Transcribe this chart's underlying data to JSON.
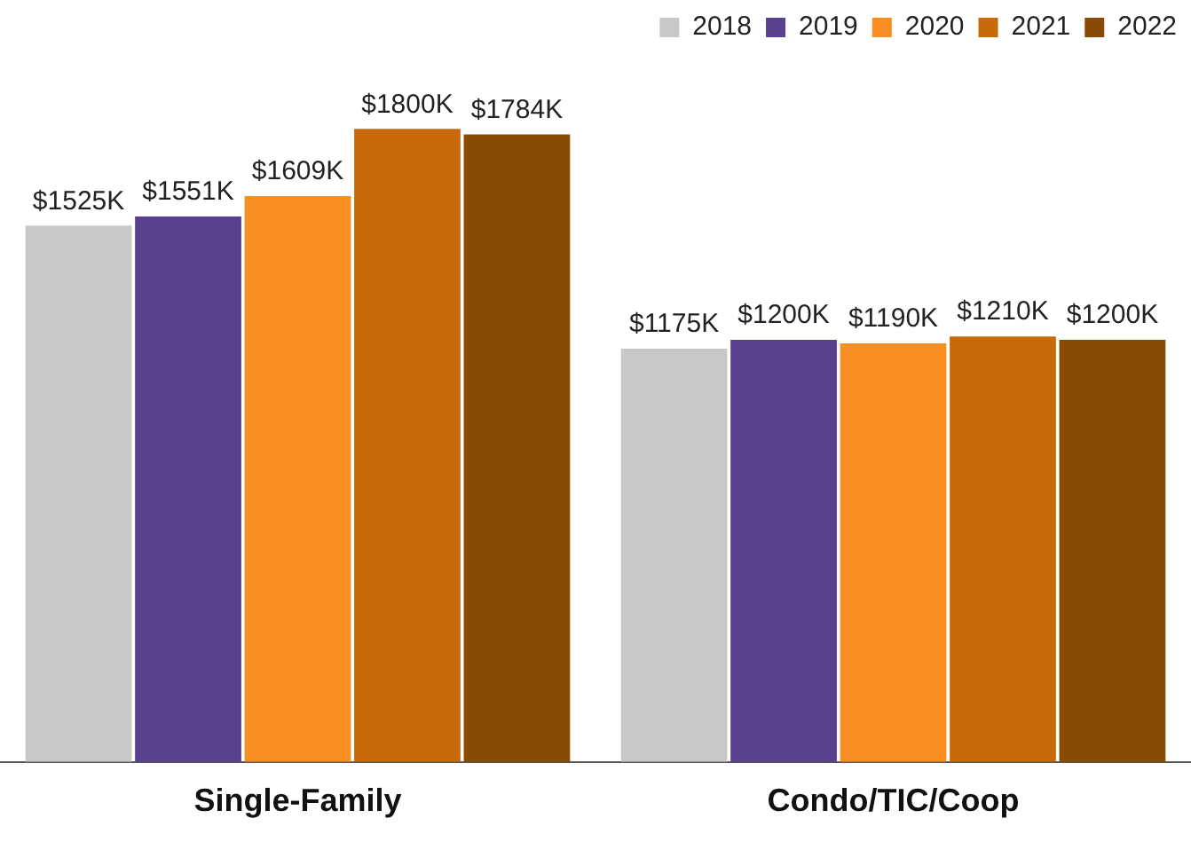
{
  "chart_data": {
    "type": "bar",
    "categories": [
      "Single-Family",
      "Condo/TIC/Coop"
    ],
    "legend": "top right",
    "grid": false,
    "series": [
      {
        "name": "2018",
        "color": "#c8c8c8",
        "values": [
          1525,
          1175
        ],
        "value_labels": [
          "$1525K",
          "$1175K"
        ]
      },
      {
        "name": "2019",
        "color": "#5a4190",
        "values": [
          1551,
          1200
        ],
        "value_labels": [
          "$1551K",
          "$1200K"
        ]
      },
      {
        "name": "2020",
        "color": "#f68e22",
        "values": [
          1609,
          1190
        ],
        "value_labels": [
          "$1609K",
          "$1190K"
        ]
      },
      {
        "name": "2021",
        "color": "#c96a0a",
        "values": [
          1800,
          1210
        ],
        "value_labels": [
          "$1800K",
          "$1210K"
        ]
      },
      {
        "name": "2022",
        "color": "#884a04",
        "values": [
          1784,
          1200
        ],
        "value_labels": [
          "$1784K",
          "$1200K"
        ]
      }
    ]
  }
}
